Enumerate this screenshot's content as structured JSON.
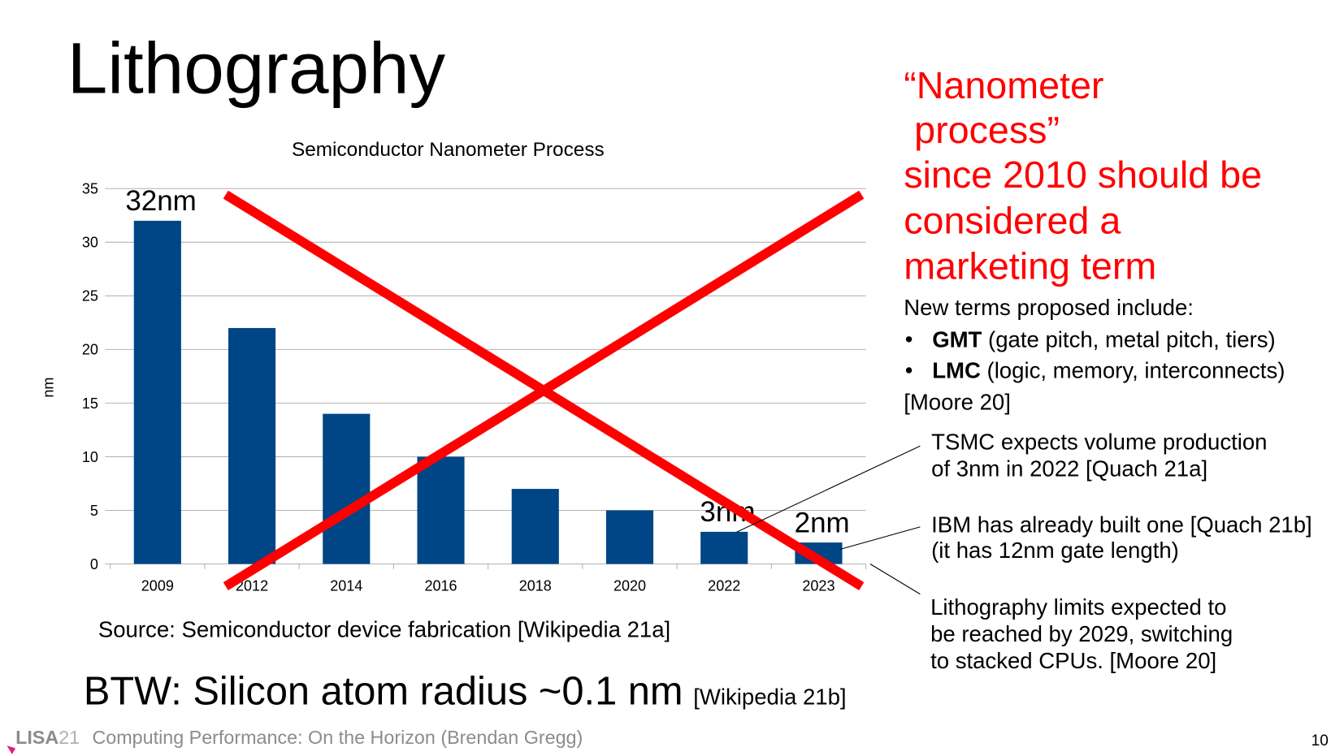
{
  "title": "Lithography",
  "chart_data": {
    "type": "bar",
    "title": "Semiconductor Nanometer Process",
    "ylabel": "nm",
    "categories": [
      "2009",
      "2012",
      "2014",
      "2016",
      "2018",
      "2020",
      "2022",
      "2023"
    ],
    "values": [
      32,
      22,
      14,
      10,
      7,
      5,
      3,
      2
    ],
    "value_labels": [
      "32nm",
      null,
      null,
      null,
      null,
      null,
      "3nm",
      "2nm"
    ],
    "color": "#004586",
    "ylim": [
      0,
      35
    ],
    "yticks": [
      0,
      5,
      10,
      15,
      20,
      25,
      30,
      35
    ],
    "grid": true
  },
  "source": "Source: Semiconductor device fabrication [Wikipedia 21a]",
  "footnote": {
    "text": "BTW: Silicon atom radius ~0.1 nm",
    "cite": "[Wikipedia 21b]"
  },
  "sidebar": {
    "heading": [
      "“Nanometer",
      " process”",
      "since 2010 should be",
      "considered a",
      "marketing term"
    ],
    "intro": "New terms proposed include:",
    "bullets": [
      {
        "term": "GMT",
        "desc": "(gate pitch, metal pitch, tiers)"
      },
      {
        "term": "LMC",
        "desc": "(logic, memory, interconnects)"
      }
    ],
    "cite": "[Moore 20]"
  },
  "callouts": [
    [
      "TSMC expects volume production",
      "of 3nm in 2022 [Quach 21a]"
    ],
    [
      "IBM has already built one [Quach 21b]",
      "(it has 12nm gate length)"
    ],
    [
      "Lithography limits expected to",
      "be reached by 2029, switching",
      "to stacked CPUs. [Moore 20]"
    ]
  ],
  "footer": {
    "logo": "LISA",
    "logo_year": "21",
    "text": "Computing Performance: On the Horizon (Brendan Gregg)",
    "page": "10"
  }
}
